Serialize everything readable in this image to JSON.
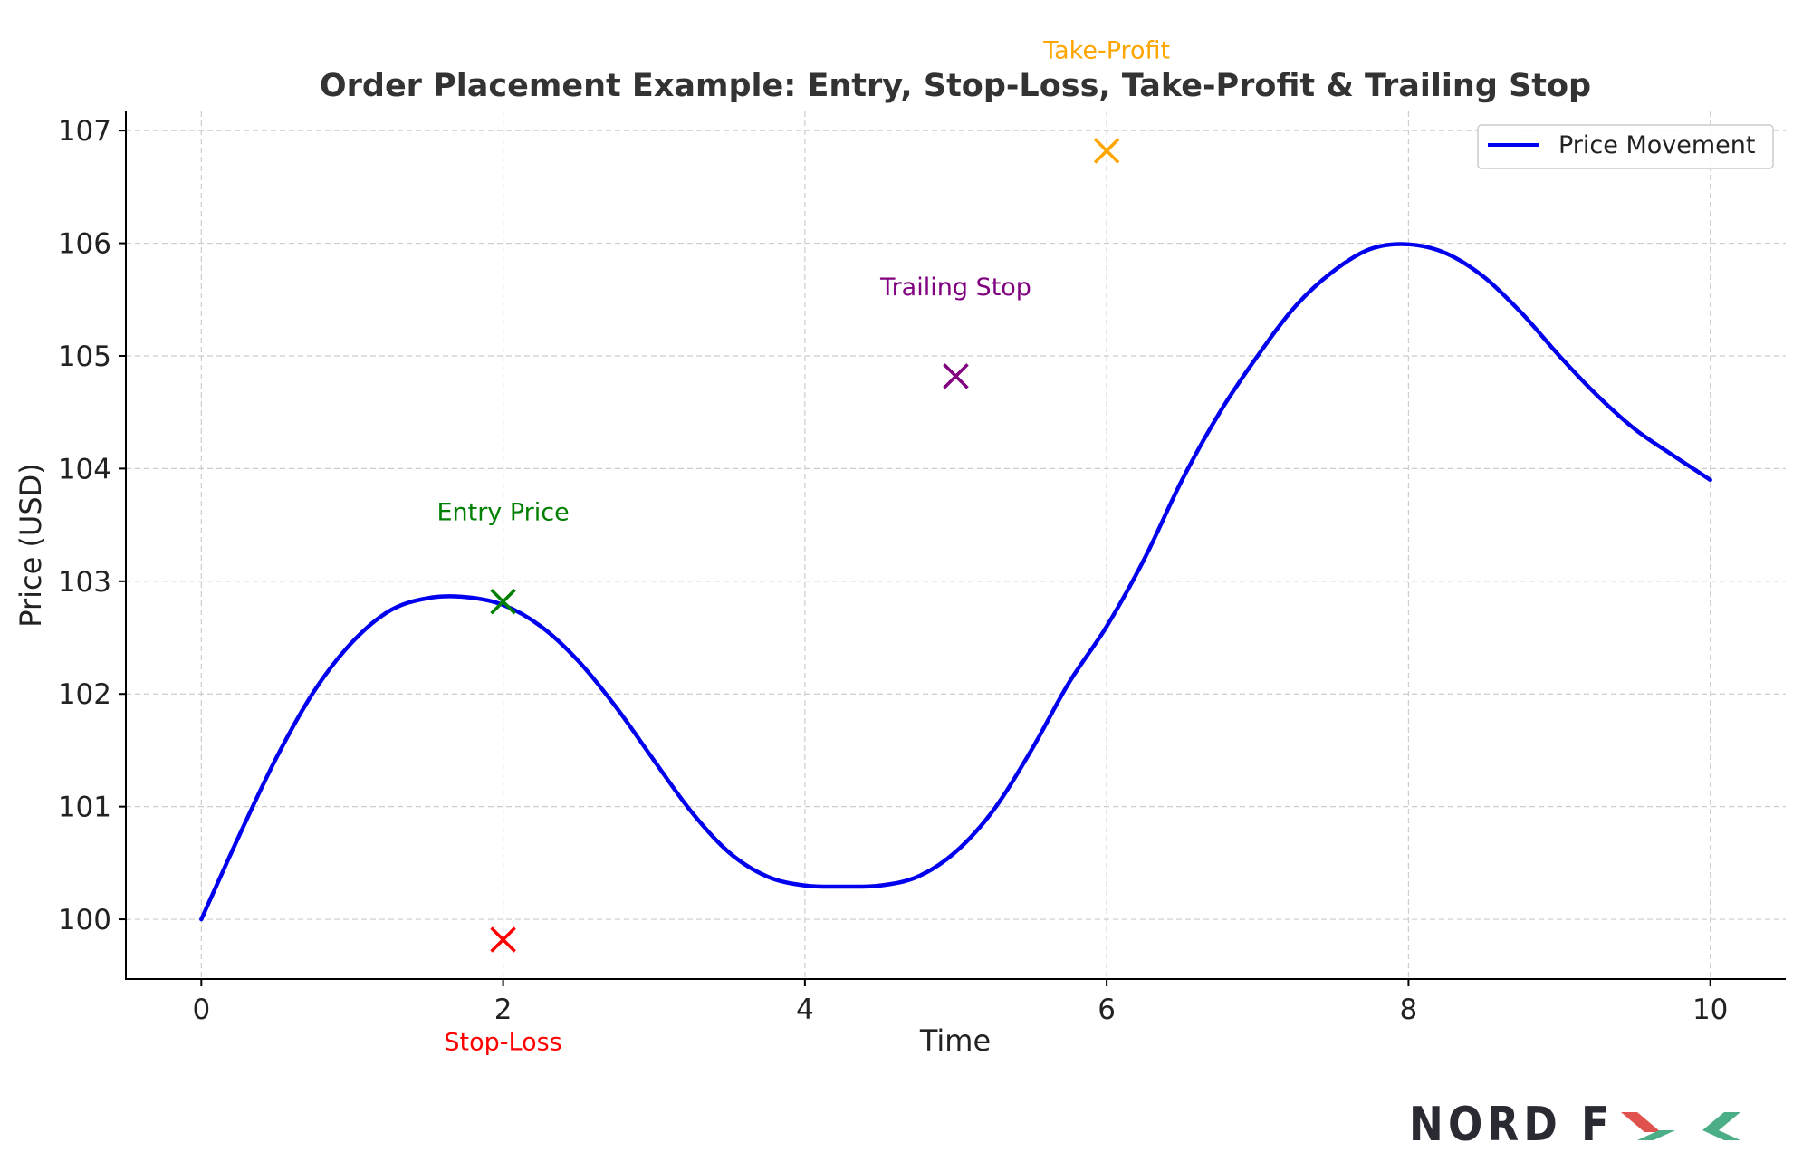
{
  "chart_data": {
    "type": "line",
    "title": "Order Placement Example: Entry, Stop-Loss, Take-Profit & Trailing Stop",
    "xlabel": "Time",
    "ylabel": "Price (USD)",
    "xlim": [
      -0.5,
      10.5
    ],
    "ylim": [
      99.47,
      107.17
    ],
    "xticks": [
      0,
      2,
      4,
      6,
      8,
      10
    ],
    "yticks": [
      100,
      101,
      102,
      103,
      104,
      105,
      106,
      107
    ],
    "grid": true,
    "legend_position": "top-right",
    "series": [
      {
        "name": "Price Movement",
        "color": "#0000ee",
        "x": [
          0,
          0.25,
          0.5,
          0.75,
          1,
          1.25,
          1.5,
          1.75,
          2,
          2.25,
          2.5,
          2.75,
          3,
          3.25,
          3.5,
          3.75,
          4,
          4.25,
          4.5,
          4.75,
          5,
          5.25,
          5.5,
          5.75,
          6,
          6.25,
          6.5,
          6.75,
          7,
          7.25,
          7.5,
          7.75,
          8,
          8.25,
          8.5,
          8.75,
          9,
          9.25,
          9.5,
          9.75,
          10
        ],
        "y": [
          100,
          100.74,
          101.44,
          102.03,
          102.46,
          102.74,
          102.85,
          102.86,
          102.79,
          102.6,
          102.29,
          101.88,
          101.41,
          100.95,
          100.59,
          100.38,
          100.3,
          100.29,
          100.3,
          100.38,
          100.6,
          100.97,
          101.5,
          102.1,
          102.6,
          103.2,
          103.9,
          104.5,
          105.0,
          105.44,
          105.75,
          105.95,
          105.99,
          105.91,
          105.7,
          105.38,
          105.0,
          104.65,
          104.35,
          104.12,
          103.9
        ]
      }
    ],
    "markers": [
      {
        "name": "Entry Price",
        "label": "Entry Price",
        "x": 2,
        "y": 102.82,
        "color": "#008000",
        "label_y": 103.62
      },
      {
        "name": "Stop-Loss",
        "label": "Stop-Loss",
        "x": 2,
        "y": 99.82,
        "color": "#ff0000",
        "label_y": 98.92
      },
      {
        "name": "Take-Profit",
        "label": "Take-Profit",
        "x": 6,
        "y": 106.82,
        "color": "#ffa500",
        "label_y": 107.72
      },
      {
        "name": "Trailing Stop",
        "label": "Trailing Stop",
        "x": 5,
        "y": 104.82,
        "color": "#800080",
        "label_y": 105.62
      }
    ]
  },
  "logo": {
    "text_dark": "NORD F",
    "text_mark": "X",
    "colors": {
      "dark": "#2a2a33",
      "red": "#e0524e",
      "green": "#4cae86"
    }
  }
}
